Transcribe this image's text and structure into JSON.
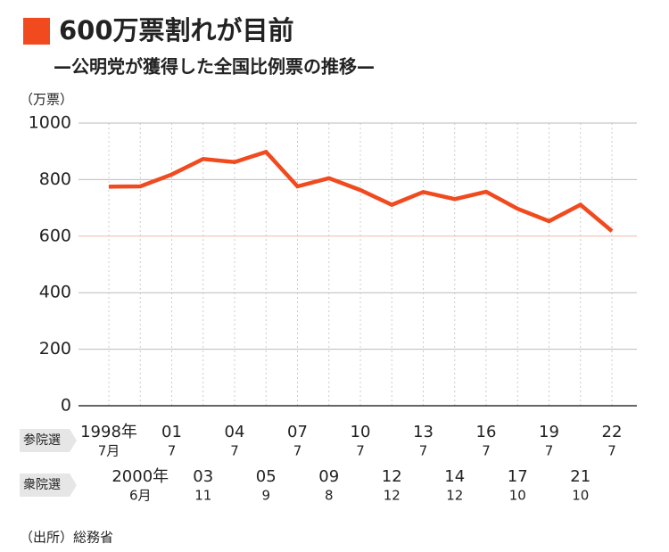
{
  "chart_data": {
    "type": "line",
    "title": "600万票割れが目前",
    "subtitle": "—公明党が獲得した全国比例票の推移—",
    "y_unit": "（万票）",
    "source": "（出所）総務省",
    "color": "#f04a1e",
    "ylim": [
      0,
      1000
    ],
    "yticks": [
      0,
      200,
      400,
      600,
      800,
      1000
    ],
    "highlight_value": 600,
    "grid": true,
    "values": [
      775,
      776,
      818,
      873,
      862,
      898,
      776,
      805,
      763,
      711,
      756,
      731,
      757,
      697,
      653,
      711,
      618
    ],
    "rows": [
      {
        "label": "参院選",
        "years": [
          "1998年",
          null,
          "01",
          null,
          "04",
          null,
          "07",
          null,
          "10",
          null,
          "13",
          null,
          "16",
          null,
          "19",
          null,
          "22"
        ],
        "months": [
          "7月",
          null,
          "7",
          null,
          "7",
          null,
          "7",
          null,
          "7",
          null,
          "7",
          null,
          "7",
          null,
          "7",
          null,
          "7"
        ]
      },
      {
        "label": "衆院選",
        "years": [
          null,
          "2000年",
          null,
          "03",
          null,
          "05",
          null,
          "09",
          null,
          "12",
          null,
          "14",
          null,
          "17",
          null,
          "21",
          null
        ],
        "months": [
          null,
          "6月",
          null,
          "11",
          null,
          "9",
          null,
          "8",
          null,
          "12",
          null,
          "12",
          null,
          "10",
          null,
          "10",
          null
        ]
      }
    ]
  }
}
